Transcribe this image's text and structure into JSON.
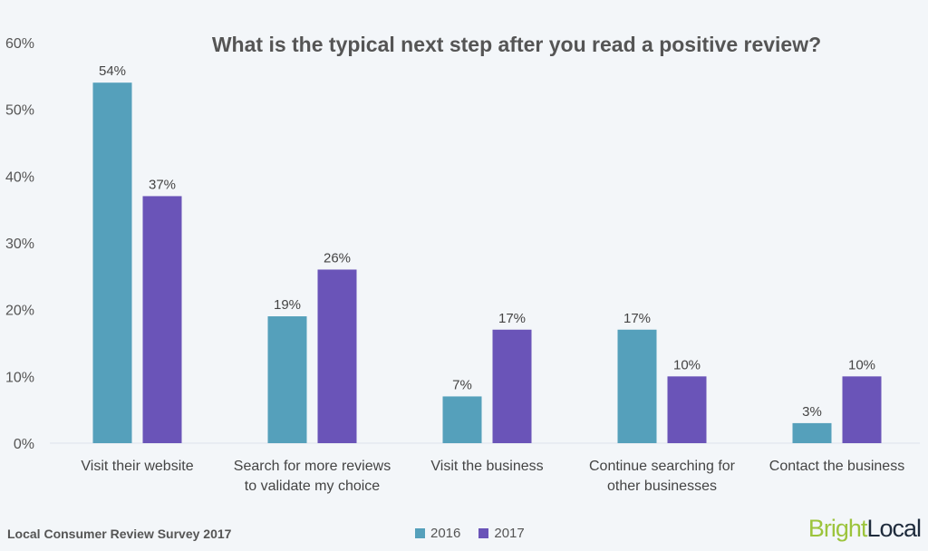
{
  "chart_data": {
    "type": "bar",
    "title": "What is the typical next step after you read a positive review?",
    "categories": [
      [
        "Visit their website"
      ],
      [
        "Search for more reviews",
        "to validate my choice"
      ],
      [
        "Visit the business"
      ],
      [
        "Continue searching for",
        "other businesses"
      ],
      [
        "Contact the business"
      ]
    ],
    "series": [
      {
        "name": "2016",
        "color": "#55a0bb",
        "values": [
          54,
          19,
          7,
          17,
          3
        ]
      },
      {
        "name": "2017",
        "color": "#6a54b8",
        "values": [
          37,
          26,
          17,
          10,
          10
        ]
      }
    ],
    "ylim": [
      0,
      60
    ],
    "yticks": [
      "0%",
      "10%",
      "20%",
      "30%",
      "40%",
      "50%",
      "60%"
    ],
    "value_suffix": "%",
    "grid": false,
    "legend": "bottom-center"
  },
  "footer": "Local Consumer Review Survey 2017",
  "logo": {
    "part1": "Bright",
    "part2": "Local"
  }
}
